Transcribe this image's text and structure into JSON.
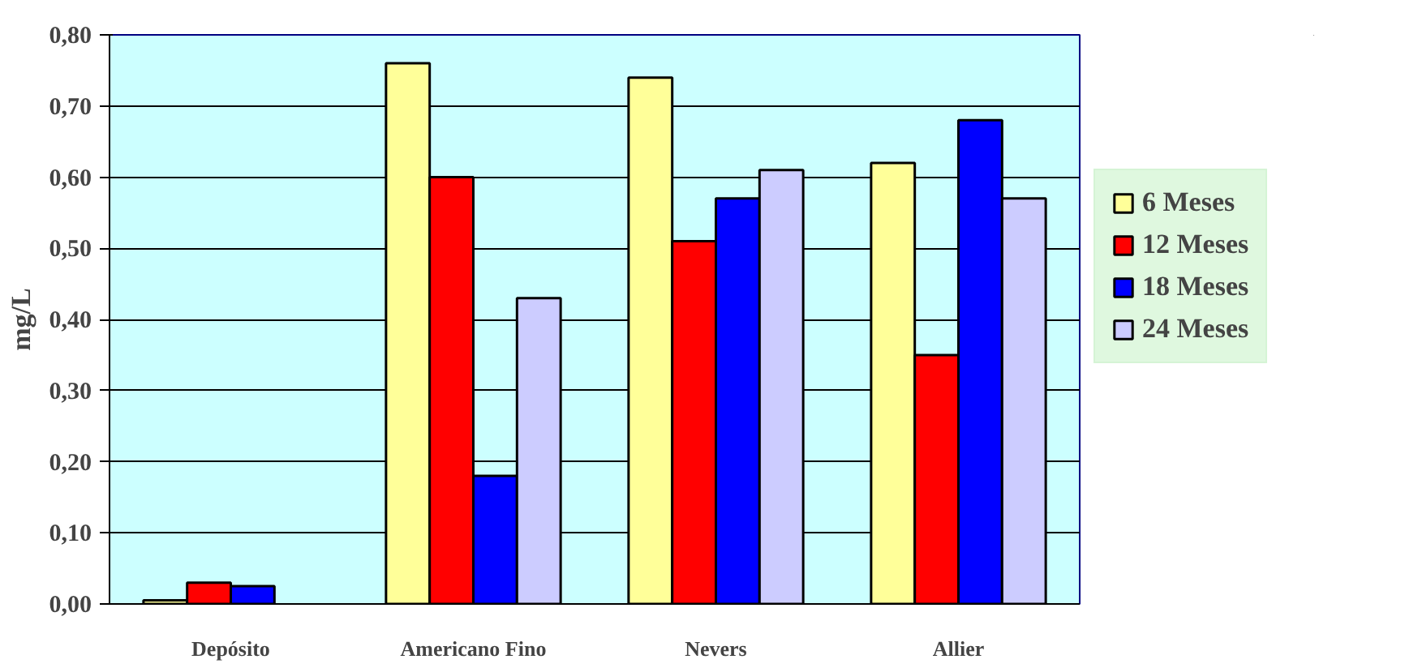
{
  "chart_data": {
    "type": "bar",
    "ylabel": "mg/L",
    "categories": [
      "Depósito",
      "Americano Fino",
      "Nevers",
      "Allier"
    ],
    "series": [
      {
        "name": "6 Meses",
        "color": "#ffff99",
        "values": [
          0.005,
          0.76,
          0.74,
          0.62
        ]
      },
      {
        "name": "12 Meses",
        "color": "#ff0000",
        "values": [
          0.03,
          0.6,
          0.51,
          0.35
        ]
      },
      {
        "name": "18 Meses",
        "color": "#0000ff",
        "values": [
          0.025,
          0.18,
          0.57,
          0.68
        ]
      },
      {
        "name": "24 Meses",
        "color": "#ccccff",
        "values": [
          null,
          0.43,
          0.61,
          0.57
        ]
      }
    ],
    "ylim": [
      0,
      0.8
    ],
    "yticks": [
      {
        "value": 0,
        "label": "0,00"
      },
      {
        "value": 0.1,
        "label": "0,10"
      },
      {
        "value": 0.2,
        "label": "0,20"
      },
      {
        "value": 0.3,
        "label": "0,30"
      },
      {
        "value": 0.4,
        "label": "0,40"
      },
      {
        "value": 0.5,
        "label": "0,50"
      },
      {
        "value": 0.6,
        "label": "0,60"
      },
      {
        "value": 0.7,
        "label": "0,70"
      },
      {
        "value": 0.8,
        "label": "0,80"
      }
    ],
    "grid": "y",
    "legend": "right"
  }
}
